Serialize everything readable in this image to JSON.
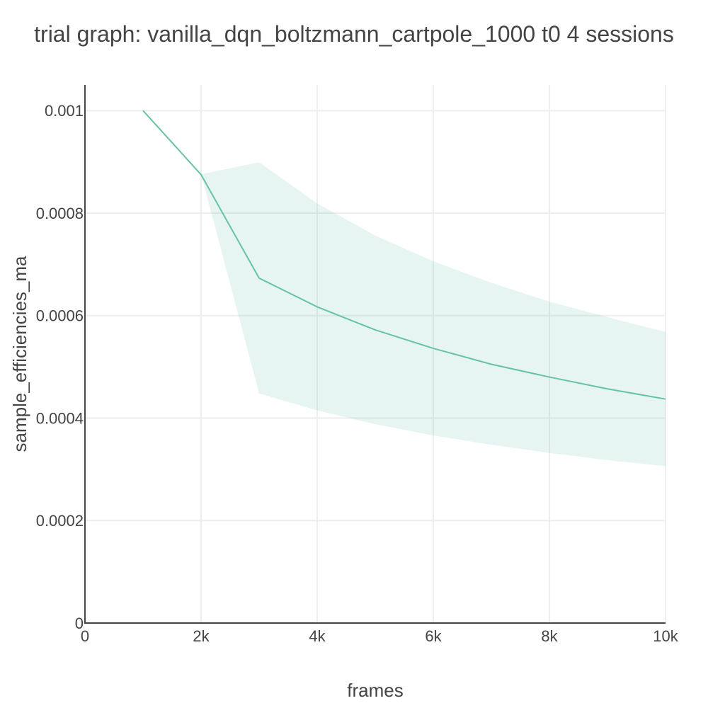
{
  "chart_data": {
    "type": "line",
    "title": "trial graph: vanilla_dqn_boltzmann_cartpole_1000 t0 4 sessions",
    "xlabel": "frames",
    "ylabel": "sample_efficiencies_ma",
    "xlim": [
      0,
      10000
    ],
    "ylim": [
      0,
      0.00105
    ],
    "x_ticks": [
      0,
      2000,
      4000,
      6000,
      8000,
      10000
    ],
    "x_tick_labels": [
      "0",
      "2k",
      "4k",
      "6k",
      "8k",
      "10k"
    ],
    "y_ticks": [
      0,
      0.0002,
      0.0004,
      0.0006,
      0.0008,
      0.001
    ],
    "y_tick_labels": [
      "0",
      "0.0002",
      "0.0004",
      "0.0006",
      "0.0008",
      "0.001"
    ],
    "grid": true,
    "series": [
      {
        "x": [
          1000,
          2000,
          3000,
          4000,
          5000,
          6000,
          7000,
          8000,
          9000,
          10000
        ],
        "values": [
          0.001,
          0.000875,
          0.000673,
          0.000617,
          0.000572,
          0.000536,
          0.000505,
          0.00048,
          0.000457,
          0.000437
        ],
        "upper": [
          0.001,
          0.000876,
          0.000899,
          0.000819,
          0.000756,
          0.000706,
          0.000664,
          0.000627,
          0.000597,
          0.000568
        ],
        "lower": [
          0.001,
          0.000876,
          0.000448,
          0.000415,
          0.000388,
          0.000366,
          0.000348,
          0.000332,
          0.000318,
          0.000306
        ],
        "color": "#66c2a5",
        "band_color": "#66c2a5",
        "band_opacity": 0.16
      }
    ]
  },
  "colors": {
    "text": "#444444",
    "grid": "#eeeeee",
    "axis": "#444444"
  }
}
